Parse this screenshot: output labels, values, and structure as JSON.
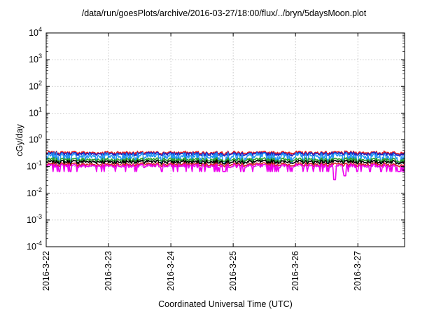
{
  "chart_data": {
    "type": "line",
    "title": "/data/run/goesPlots/archive/2016-03-27/18:00/flux/../bryn/5daysMoon.plot",
    "xlabel": "Coordinated Universal Time (UTC)",
    "ylabel": "cGy/day",
    "y_scale": "log",
    "ylim": [
      0.0001,
      10000
    ],
    "y_ticks": [
      {
        "value": 0.0001,
        "base": "10",
        "exp": "-4"
      },
      {
        "value": 0.001,
        "base": "10",
        "exp": "-3"
      },
      {
        "value": 0.01,
        "base": "10",
        "exp": "-2"
      },
      {
        "value": 0.1,
        "base": "10",
        "exp": "-1"
      },
      {
        "value": 1,
        "base": "10",
        "exp": "0"
      },
      {
        "value": 10,
        "base": "10",
        "exp": "1"
      },
      {
        "value": 100,
        "base": "10",
        "exp": "2"
      },
      {
        "value": 1000,
        "base": "10",
        "exp": "3"
      },
      {
        "value": 10000,
        "base": "10",
        "exp": "4"
      }
    ],
    "xlim": [
      "2016-03-22T00:00",
      "2016-03-27T18:00"
    ],
    "x_ticks": [
      "2016-3-22",
      "2016-3-23",
      "2016-3-24",
      "2016-3-25",
      "2016-3-26",
      "2016-3-27"
    ],
    "grid": true,
    "series": [
      {
        "color": "#e41a1c",
        "baseline": 0.33,
        "amplitude": 0.07
      },
      {
        "color": "#1f1fbf",
        "baseline": 0.3,
        "amplitude": 0.07
      },
      {
        "color": "#2196f3",
        "baseline": 0.24,
        "amplitude": 0.12
      },
      {
        "color": "#2ca02c",
        "baseline": 0.18,
        "amplitude": 0.05
      },
      {
        "color": "#000000",
        "baseline": 0.15,
        "amplitude": 0.04
      },
      {
        "color": "#d62728",
        "baseline": 0.12,
        "amplitude": 0.03
      },
      {
        "color": "#ee00ee",
        "baseline": 0.105,
        "amplitude": 0.03
      }
    ],
    "notable_dips": [
      {
        "date": "2016-03-26T15:00",
        "min_value": 0.032
      },
      {
        "date": "2016-03-26T19:00",
        "min_value": 0.045
      }
    ]
  }
}
